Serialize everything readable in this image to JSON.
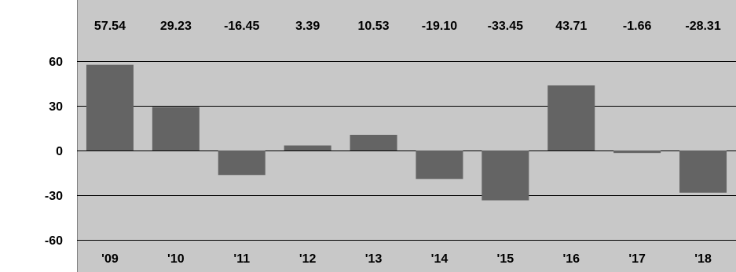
{
  "chart_data": {
    "type": "bar",
    "categories": [
      "'09",
      "'10",
      "'11",
      "'12",
      "'13",
      "'14",
      "'15",
      "'16",
      "'17",
      "'18"
    ],
    "values": [
      57.54,
      29.23,
      -16.45,
      3.39,
      10.53,
      -19.1,
      -33.45,
      43.71,
      -1.66,
      -28.31
    ],
    "value_labels": [
      "57.54",
      "29.23",
      "-16.45",
      "3.39",
      "10.53",
      "-19.10",
      "-33.45",
      "43.71",
      "-1.66",
      "-28.31"
    ],
    "y_ticks": [
      60,
      30,
      0,
      -30,
      -60
    ],
    "y_tick_labels": [
      "60",
      "30",
      "0",
      "-30",
      "-60"
    ],
    "ylim": [
      -60,
      60
    ],
    "title": "",
    "xlabel": "",
    "ylabel": "",
    "grid": true,
    "colors": {
      "background": "#c8c8c8",
      "bar": "#646464",
      "grid": "#000000",
      "frame": "#808080"
    }
  }
}
